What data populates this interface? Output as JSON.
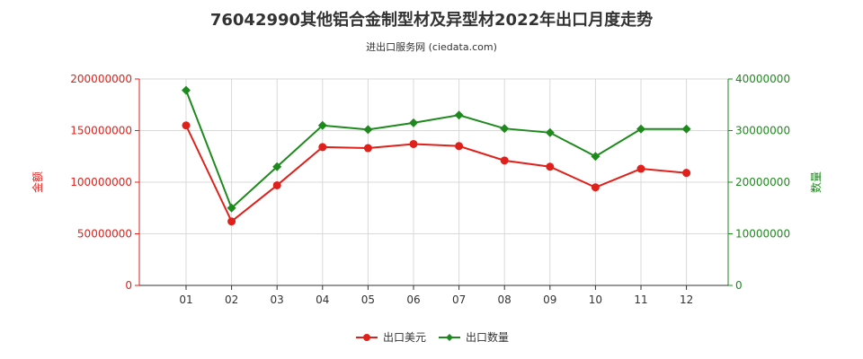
{
  "chart_data": {
    "type": "line",
    "title": "76042990其他铝合金制型材及异型材2022年出口月度走势",
    "subtitle": "进出口服务网 (ciedata.com)",
    "categories": [
      "01",
      "02",
      "03",
      "04",
      "05",
      "06",
      "07",
      "08",
      "09",
      "10",
      "11",
      "12"
    ],
    "left_axis": {
      "label": "金额",
      "ylim": [
        0,
        200000000
      ],
      "ticks": [
        "0",
        "50000000",
        "100000000",
        "150000000",
        "200000000"
      ],
      "color": "#e0201b"
    },
    "right_axis": {
      "label": "数量",
      "ylim": [
        0,
        40000000
      ],
      "ticks": [
        "0",
        "10000000",
        "20000000",
        "30000000",
        "40000000"
      ],
      "color": "#1e8a1e"
    },
    "series": [
      {
        "name": "出口美元",
        "axis": "left",
        "color": "#e0201b",
        "marker": "circle",
        "values": [
          155000000,
          62000000,
          97000000,
          134000000,
          133000000,
          137000000,
          135000000,
          121000000,
          115000000,
          95000000,
          113000000,
          109000000
        ]
      },
      {
        "name": "出口数量",
        "axis": "right",
        "color": "#1e8a1e",
        "marker": "diamond",
        "values": [
          37800000,
          15000000,
          23000000,
          31000000,
          30200000,
          31500000,
          33000000,
          30400000,
          29600000,
          25000000,
          30300000,
          30300000
        ]
      }
    ],
    "grid": true,
    "legend_position": "bottom-center"
  }
}
